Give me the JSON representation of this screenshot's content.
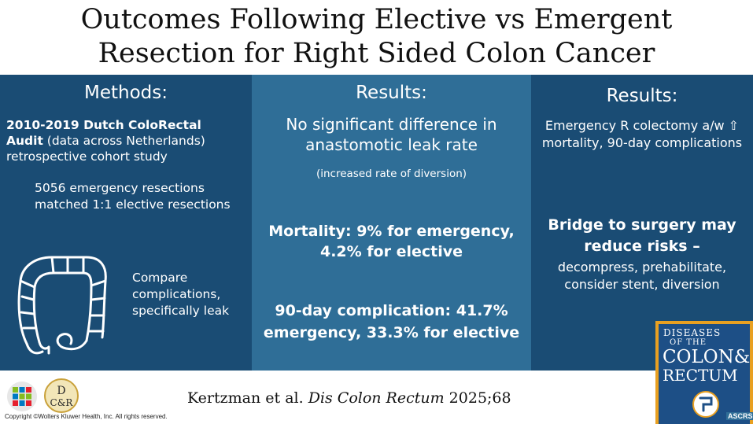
{
  "title_line1": "Outcomes Following Elective vs Emergent",
  "title_line2": "Resection for Right Sided Colon Cancer",
  "methods": {
    "heading": "Methods:",
    "study_bold": "2010-2019 Dutch ColoRectal Audit",
    "study_rest": " (data across Netherlands) retrospective cohort study",
    "matched": "5056 emergency resections matched 1:1 elective resections",
    "compare": "Compare complications, specifically leak",
    "icon": "colon-icon"
  },
  "results1": {
    "heading": "Results:",
    "leak": "No significant difference in anastomotic leak rate",
    "diversion": "(increased rate of diversion)",
    "mortality": "Mortality: 9% for emergency, 4.2% for elective",
    "complication": "90-day complication: 41.7% emergency, 33.3% for elective"
  },
  "results2": {
    "heading": "Results:",
    "summary": "Emergency R colectomy a/w ⇧ mortality, 90-day complications",
    "bridge_bold": "Bridge to surgery may reduce risks –",
    "bridge_rest": "decompress, prehabilitate, consider stent, diversion"
  },
  "citation": {
    "authors": "Kertzman et al. ",
    "journal": "Dis Colon Rectum",
    "year": " 2025;68"
  },
  "copyright": "Copyright ©Wolters Kluwer Health, Inc. All rights reserved.",
  "journal_cover": {
    "line1": "DISEASES",
    "line2": "OF THE",
    "line3": "COLON&",
    "line4": "RECTUM",
    "badge": "ASCRS"
  },
  "logo": {
    "dcr_top": "D",
    "dcr_bottom": "C&R"
  },
  "colors": {
    "dark_blue": "#1a4c74",
    "mid_blue": "#2f6e97",
    "cover_gold": "#e8a021"
  }
}
